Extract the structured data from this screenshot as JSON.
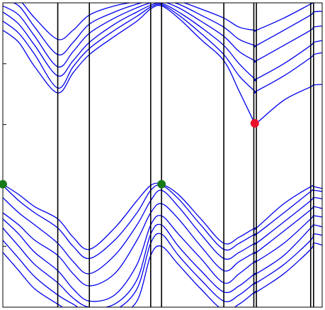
{
  "chart_data": {
    "type": "line",
    "title": "",
    "xlabel": "",
    "ylabel": "",
    "xlim": [
      0,
      1
    ],
    "ylim": [
      0,
      5
    ],
    "grid": false,
    "legend": "none",
    "colors": {
      "band": "#0000ee",
      "axis": "#000000",
      "vbm_marker": "#1a7a1a",
      "cbm_marker": "#e8102a"
    },
    "high_symmetry_x": [
      0.172,
      0.271,
      0.463,
      0.497,
      0.692,
      0.786,
      0.794,
      0.964,
      0.973
    ],
    "y_ticks": [
      1,
      2,
      3,
      4
    ],
    "x_ticks": [
      0.172,
      0.271,
      0.463,
      0.497,
      0.692,
      0.786,
      0.794,
      0.964,
      0.973
    ],
    "vbm_points": [
      {
        "x": 0.0,
        "y": 2.02
      },
      {
        "x": 0.497,
        "y": 2.02
      }
    ],
    "cbm_point": {
      "x": 0.789,
      "y": 3.02
    },
    "conduction_bands": [
      {
        "x": [
          0.0,
          0.05,
          0.1,
          0.172,
          0.22,
          0.271,
          0.35,
          0.42,
          0.463,
          0.497,
          0.55,
          0.62,
          0.692,
          0.74,
          0.789,
          0.794,
          0.88,
          0.964,
          0.973,
          1.0
        ],
        "y": [
          4.55,
          4.35,
          3.95,
          3.52,
          3.85,
          4.15,
          4.45,
          4.7,
          4.9,
          4.95,
          4.75,
          4.4,
          4.05,
          3.55,
          3.02,
          3.02,
          3.4,
          3.62,
          3.65,
          3.66
        ]
      },
      {
        "x": [
          0.0,
          0.05,
          0.1,
          0.172,
          0.22,
          0.271,
          0.35,
          0.42,
          0.463,
          0.497,
          0.55,
          0.62,
          0.692,
          0.74,
          0.789,
          0.794,
          0.88,
          0.964,
          0.973,
          1.0
        ],
        "y": [
          4.7,
          4.5,
          4.15,
          3.6,
          3.95,
          4.25,
          4.55,
          4.78,
          4.93,
          4.97,
          4.8,
          4.5,
          4.15,
          3.8,
          3.55,
          3.55,
          3.8,
          4.1,
          4.15,
          4.18
        ]
      },
      {
        "x": [
          0.0,
          0.05,
          0.1,
          0.172,
          0.22,
          0.271,
          0.35,
          0.42,
          0.463,
          0.497,
          0.55,
          0.62,
          0.692,
          0.74,
          0.789,
          0.794,
          0.88,
          0.964,
          0.973,
          1.0
        ],
        "y": [
          4.85,
          4.65,
          4.3,
          3.8,
          4.05,
          4.35,
          4.65,
          4.85,
          4.96,
          4.99,
          4.85,
          4.6,
          4.3,
          4.0,
          3.75,
          3.75,
          4.0,
          4.3,
          4.35,
          4.38
        ]
      },
      {
        "x": [
          0.0,
          0.05,
          0.1,
          0.172,
          0.22,
          0.271,
          0.35,
          0.42,
          0.463,
          0.497,
          0.55,
          0.62,
          0.692,
          0.74,
          0.789,
          0.794,
          0.88,
          0.964,
          0.973,
          1.0
        ],
        "y": [
          4.95,
          4.8,
          4.45,
          3.95,
          4.2,
          4.5,
          4.75,
          4.92,
          5.0,
          5.02,
          4.92,
          4.7,
          4.45,
          4.2,
          4.05,
          4.05,
          4.3,
          4.55,
          4.6,
          4.62
        ]
      },
      {
        "x": [
          0.0,
          0.05,
          0.1,
          0.172,
          0.22,
          0.271,
          0.35,
          0.42,
          0.463,
          0.497,
          0.55,
          0.62,
          0.692,
          0.74,
          0.789,
          0.794,
          0.88,
          0.964,
          0.973,
          1.0
        ],
        "y": [
          5.05,
          4.95,
          4.6,
          4.15,
          4.35,
          4.65,
          4.85,
          4.98,
          5.03,
          5.05,
          4.98,
          4.8,
          4.6,
          4.4,
          4.3,
          4.3,
          4.55,
          4.8,
          4.85,
          4.86
        ]
      },
      {
        "x": [
          0.0,
          0.05,
          0.1,
          0.172,
          0.22,
          0.271,
          0.35,
          0.42,
          0.463,
          0.497,
          0.55,
          0.62,
          0.692,
          0.74,
          0.789,
          0.794,
          0.88,
          0.964,
          0.973,
          1.0
        ],
        "y": [
          5.1,
          5.05,
          4.75,
          4.4,
          4.55,
          4.8,
          4.95,
          5.02,
          5.06,
          5.08,
          5.03,
          4.9,
          4.75,
          4.6,
          4.55,
          4.55,
          4.75,
          4.98,
          5.0,
          5.02
        ]
      }
    ],
    "valence_bands": [
      {
        "x": [
          0.0,
          0.05,
          0.1,
          0.172,
          0.22,
          0.271,
          0.35,
          0.42,
          0.463,
          0.497,
          0.55,
          0.62,
          0.692,
          0.74,
          0.789,
          0.794,
          0.88,
          0.964,
          0.973,
          1.0
        ],
        "y": [
          2.02,
          1.85,
          1.65,
          1.45,
          1.15,
          0.95,
          1.3,
          1.75,
          2.0,
          2.02,
          1.85,
          1.45,
          1.05,
          1.15,
          1.3,
          1.3,
          1.7,
          1.98,
          1.98,
          1.95
        ]
      },
      {
        "x": [
          0.0,
          0.05,
          0.1,
          0.172,
          0.22,
          0.271,
          0.35,
          0.42,
          0.463,
          0.497,
          0.55,
          0.62,
          0.692,
          0.74,
          0.789,
          0.794,
          0.88,
          0.964,
          0.973,
          1.0
        ],
        "y": [
          2.0,
          1.75,
          1.55,
          1.3,
          1.0,
          0.8,
          1.1,
          1.55,
          1.92,
          2.0,
          1.78,
          1.35,
          0.95,
          1.05,
          1.2,
          1.2,
          1.55,
          1.9,
          1.92,
          1.9
        ]
      },
      {
        "x": [
          0.0,
          0.05,
          0.1,
          0.172,
          0.22,
          0.271,
          0.35,
          0.42,
          0.463,
          0.497,
          0.55,
          0.62,
          0.692,
          0.74,
          0.789,
          0.794,
          0.88,
          0.964,
          0.973,
          1.0
        ],
        "y": [
          1.8,
          1.55,
          1.35,
          1.05,
          0.75,
          0.55,
          0.85,
          1.35,
          1.75,
          1.92,
          1.65,
          1.2,
          0.8,
          0.9,
          1.05,
          1.05,
          1.4,
          1.75,
          1.8,
          1.78
        ]
      },
      {
        "x": [
          0.0,
          0.05,
          0.1,
          0.172,
          0.22,
          0.271,
          0.35,
          0.42,
          0.463,
          0.497,
          0.55,
          0.62,
          0.692,
          0.74,
          0.789,
          0.794,
          0.88,
          0.964,
          0.973,
          1.0
        ],
        "y": [
          1.55,
          1.35,
          1.1,
          0.85,
          0.55,
          0.35,
          0.55,
          1.1,
          1.55,
          1.7,
          1.45,
          1.0,
          0.6,
          0.75,
          0.9,
          0.9,
          1.25,
          1.6,
          1.65,
          1.62
        ]
      },
      {
        "x": [
          0.0,
          0.05,
          0.1,
          0.172,
          0.22,
          0.271,
          0.35,
          0.42,
          0.463,
          0.497,
          0.55,
          0.62,
          0.692,
          0.74,
          0.789,
          0.794,
          0.88,
          0.964,
          0.973,
          1.0
        ],
        "y": [
          1.45,
          1.2,
          0.9,
          0.6,
          0.3,
          0.1,
          0.2,
          0.7,
          1.35,
          1.5,
          1.2,
          0.8,
          0.4,
          0.55,
          0.75,
          0.75,
          1.05,
          1.45,
          1.5,
          1.48
        ]
      },
      {
        "x": [
          0.0,
          0.05,
          0.1,
          0.172,
          0.22,
          0.271,
          0.35,
          0.42,
          0.463,
          0.497,
          0.55,
          0.62,
          0.692,
          0.74,
          0.789,
          0.794,
          0.88,
          0.964,
          0.973,
          1.0
        ],
        "y": [
          1.3,
          1.0,
          0.7,
          0.4,
          0.15,
          0.0,
          0.05,
          0.45,
          1.2,
          1.35,
          1.0,
          0.6,
          0.25,
          0.35,
          0.55,
          0.55,
          0.85,
          1.3,
          1.35,
          1.32
        ]
      },
      {
        "x": [
          0.0,
          0.05,
          0.1,
          0.172,
          0.22,
          0.271,
          0.35,
          0.42,
          0.463,
          0.497,
          0.55,
          0.62,
          0.692,
          0.74,
          0.789,
          0.794,
          0.88,
          0.964,
          0.973,
          1.0
        ],
        "y": [
          1.1,
          0.8,
          0.5,
          0.2,
          0.05,
          -0.1,
          -0.05,
          0.3,
          1.05,
          1.2,
          0.85,
          0.45,
          0.1,
          0.2,
          0.4,
          0.4,
          0.7,
          1.1,
          1.2,
          1.18
        ]
      },
      {
        "x": [
          0.0,
          0.05,
          0.1,
          0.172,
          0.22,
          0.271,
          0.35,
          0.42,
          0.463,
          0.497,
          0.55,
          0.62,
          0.692,
          0.74,
          0.789,
          0.794,
          0.88,
          0.964,
          0.973,
          1.0
        ],
        "y": [
          0.9,
          0.6,
          0.3,
          0.05,
          -0.1,
          -0.2,
          -0.15,
          0.1,
          0.85,
          1.0,
          0.7,
          0.3,
          -0.05,
          0.05,
          0.25,
          0.25,
          0.55,
          0.95,
          1.05,
          1.02
        ]
      }
    ]
  }
}
